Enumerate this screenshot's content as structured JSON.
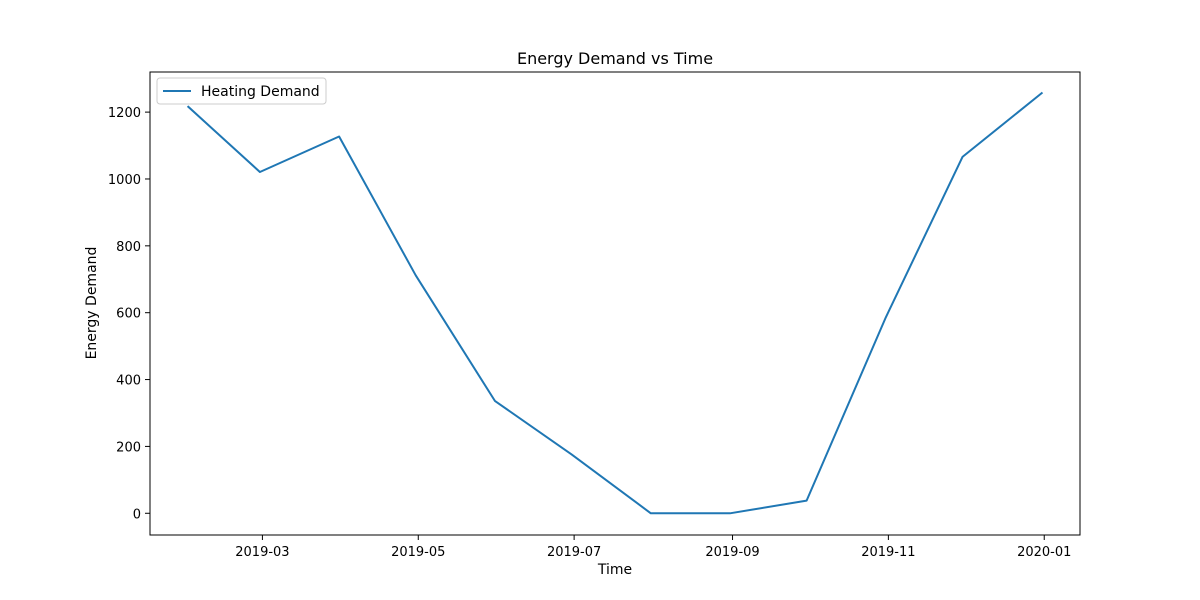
{
  "chart_data": {
    "type": "line",
    "title": "Energy Demand vs Time",
    "xlabel": "Time",
    "ylabel": "Energy Demand",
    "x": [
      "2019-01-31",
      "2019-02-28",
      "2019-03-31",
      "2019-04-30",
      "2019-05-31",
      "2019-06-30",
      "2019-07-31",
      "2019-08-31",
      "2019-09-30",
      "2019-10-31",
      "2019-11-30",
      "2019-12-31"
    ],
    "series": [
      {
        "name": "Heating Demand",
        "color": "#1f77b4",
        "values": [
          1216,
          1021,
          1127,
          712,
          336,
          176,
          0,
          0,
          38,
          586,
          1066,
          1257
        ]
      }
    ],
    "xlim": [
      "2019-01-16",
      "2020-01-15"
    ],
    "ylim": [
      -65,
      1320
    ],
    "x_ticks": [
      "2019-03",
      "2019-05",
      "2019-07",
      "2019-09",
      "2019-11",
      "2020-01"
    ],
    "y_ticks": [
      0,
      200,
      400,
      600,
      800,
      1000,
      1200
    ],
    "grid": false,
    "legend_position": "upper left"
  }
}
